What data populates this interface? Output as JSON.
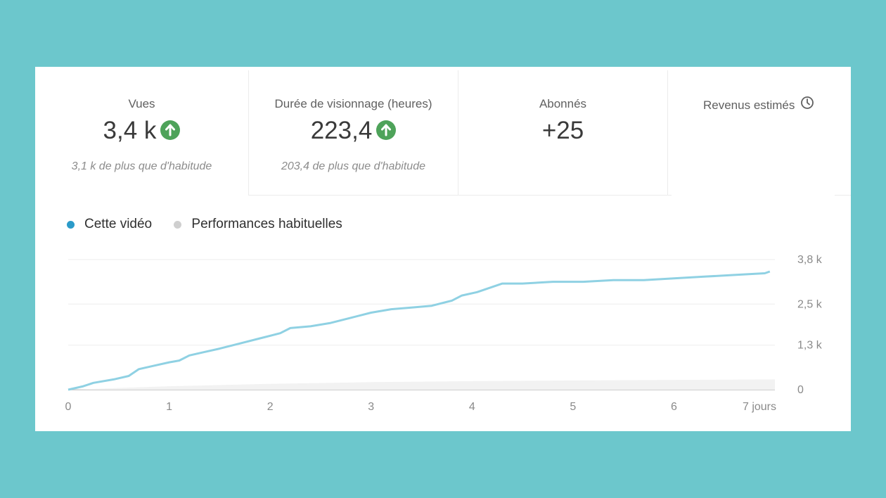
{
  "metrics": [
    {
      "label": "Vues",
      "value": "3,4 k",
      "trend": "up",
      "note": "3,1 k de plus que d'habitude"
    },
    {
      "label": "Durée de visionnage (heures)",
      "value": "223,4",
      "trend": "up",
      "note": "203,4 de plus que d'habitude"
    },
    {
      "label": "Abonnés",
      "value": "+25",
      "trend": "",
      "note": ""
    },
    {
      "label": "Revenus estimés",
      "value": "",
      "trend": "",
      "note": ""
    }
  ],
  "legend": {
    "this_video": "Cette vidéo",
    "typical": "Performances habituelles"
  },
  "colors": {
    "background": "#6cc7cc",
    "this_video": "#8fd1e3",
    "this_video_dot": "#2b9bc9",
    "typical": "#cfcfcf",
    "up_arrow": "#4ea35a"
  },
  "chart_data": {
    "type": "line",
    "x_ticks": [
      "0",
      "1",
      "2",
      "3",
      "4",
      "5",
      "6",
      "7 jours"
    ],
    "y_ticks": [
      "0",
      "1,3 k",
      "2,5 k",
      "3,8 k"
    ],
    "xlim": [
      0,
      7
    ],
    "ylim": [
      0,
      3800
    ],
    "grid": true,
    "series": [
      {
        "name": "Cette vidéo",
        "x": [
          0,
          0.15,
          0.25,
          0.45,
          0.6,
          0.7,
          0.85,
          1.0,
          1.1,
          1.2,
          1.35,
          1.5,
          1.7,
          1.9,
          2.1,
          2.2,
          2.4,
          2.6,
          2.8,
          3.0,
          3.2,
          3.4,
          3.6,
          3.8,
          3.9,
          4.05,
          4.15,
          4.3,
          4.5,
          4.8,
          5.1,
          5.4,
          5.7,
          6.0,
          6.3,
          6.6,
          6.9,
          6.95
        ],
        "y": [
          0,
          100,
          200,
          300,
          400,
          600,
          700,
          800,
          850,
          1000,
          1100,
          1200,
          1350,
          1500,
          1650,
          1800,
          1850,
          1950,
          2100,
          2250,
          2350,
          2400,
          2450,
          2600,
          2750,
          2850,
          2950,
          3100,
          3100,
          3150,
          3150,
          3200,
          3200,
          3250,
          3300,
          3350,
          3400,
          3450
        ]
      },
      {
        "name": "Performances habituelles",
        "x": [
          0,
          1,
          2,
          3,
          4,
          5,
          6,
          7
        ],
        "y": [
          0,
          100,
          170,
          220,
          250,
          270,
          285,
          300
        ]
      }
    ]
  }
}
